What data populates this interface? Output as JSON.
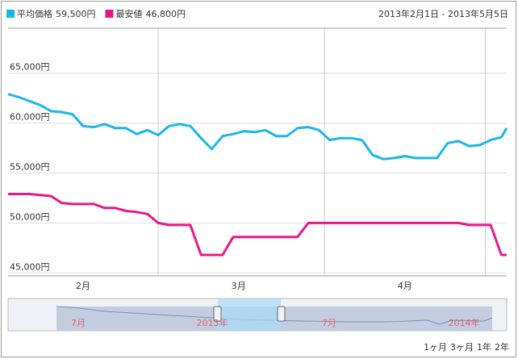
{
  "chart_data": {
    "type": "line",
    "date_range": "2013年2月1日 - 2013年5月5日",
    "x": [
      "2013-02-01",
      "2013-02-03",
      "2013-02-05",
      "2013-02-07",
      "2013-02-09",
      "2013-02-11",
      "2013-02-13",
      "2013-02-15",
      "2013-02-17",
      "2013-02-19",
      "2013-02-21",
      "2013-02-23",
      "2013-02-25",
      "2013-02-27",
      "2013-03-01",
      "2013-03-03",
      "2013-03-05",
      "2013-03-07",
      "2013-03-09",
      "2013-03-11",
      "2013-03-13",
      "2013-03-15",
      "2013-03-17",
      "2013-03-19",
      "2013-03-21",
      "2013-03-23",
      "2013-03-25",
      "2013-03-27",
      "2013-03-29",
      "2013-03-31",
      "2013-04-02",
      "2013-04-04",
      "2013-04-06",
      "2013-04-08",
      "2013-04-10",
      "2013-04-12",
      "2013-04-14",
      "2013-04-16",
      "2013-04-18",
      "2013-04-20",
      "2013-04-22",
      "2013-04-24",
      "2013-04-26",
      "2013-04-28",
      "2013-04-30",
      "2013-05-02",
      "2013-05-04",
      "2013-05-05"
    ],
    "xlim": [
      "2013-02-01",
      "2013-05-05"
    ],
    "xticks": [
      {
        "value": "2013-02-15",
        "label": "2月"
      },
      {
        "value": "2013-03-16",
        "label": "3月"
      },
      {
        "value": "2013-04-16",
        "label": "4月"
      }
    ],
    "xgrid": [
      "2013-03-01",
      "2013-04-01",
      "2013-05-01"
    ],
    "ylim": [
      44700,
      69500
    ],
    "yticks": [
      {
        "value": 45000,
        "label": "45,000円"
      },
      {
        "value": 50000,
        "label": "50,000円"
      },
      {
        "value": 55000,
        "label": "55,000円"
      },
      {
        "value": 60000,
        "label": "60,000円"
      },
      {
        "value": 65000,
        "label": "65,000円"
      }
    ],
    "grid": true,
    "series": [
      {
        "name": "平均価格",
        "value_label": "59,500円",
        "color": "#1ab7ea",
        "values": [
          62900,
          62600,
          62200,
          61800,
          61200,
          61100,
          60900,
          59700,
          59600,
          59900,
          59500,
          59500,
          58900,
          59300,
          58800,
          59700,
          59900,
          59700,
          58500,
          57400,
          58700,
          58900,
          59200,
          59100,
          59300,
          58700,
          58700,
          59500,
          59600,
          59300,
          58300,
          58500,
          58500,
          58300,
          56800,
          56400,
          56500,
          56700,
          56500,
          56500,
          56500,
          58000,
          58200,
          57700,
          57800,
          58300,
          58600,
          59500
        ]
      },
      {
        "name": "最安値",
        "value_label": "46,800円",
        "color": "#e8178a",
        "values": [
          52900,
          52900,
          52900,
          52800,
          52700,
          52000,
          51900,
          51900,
          51900,
          51500,
          51500,
          51200,
          51100,
          50900,
          50000,
          49800,
          49800,
          49800,
          46800,
          46800,
          46800,
          48600,
          48600,
          48600,
          48600,
          48600,
          48600,
          48600,
          50000,
          50000,
          50000,
          50000,
          50000,
          50000,
          50000,
          50000,
          50000,
          50000,
          50000,
          50000,
          50000,
          50000,
          50000,
          49800,
          49800,
          49800,
          46800,
          46800
        ]
      }
    ],
    "navigator": {
      "labels": [
        "7月",
        "2013年",
        "7月",
        "2014年"
      ]
    },
    "range_buttons": [
      "1ヶ月",
      "3ヶ月",
      "1年",
      "2年"
    ]
  }
}
